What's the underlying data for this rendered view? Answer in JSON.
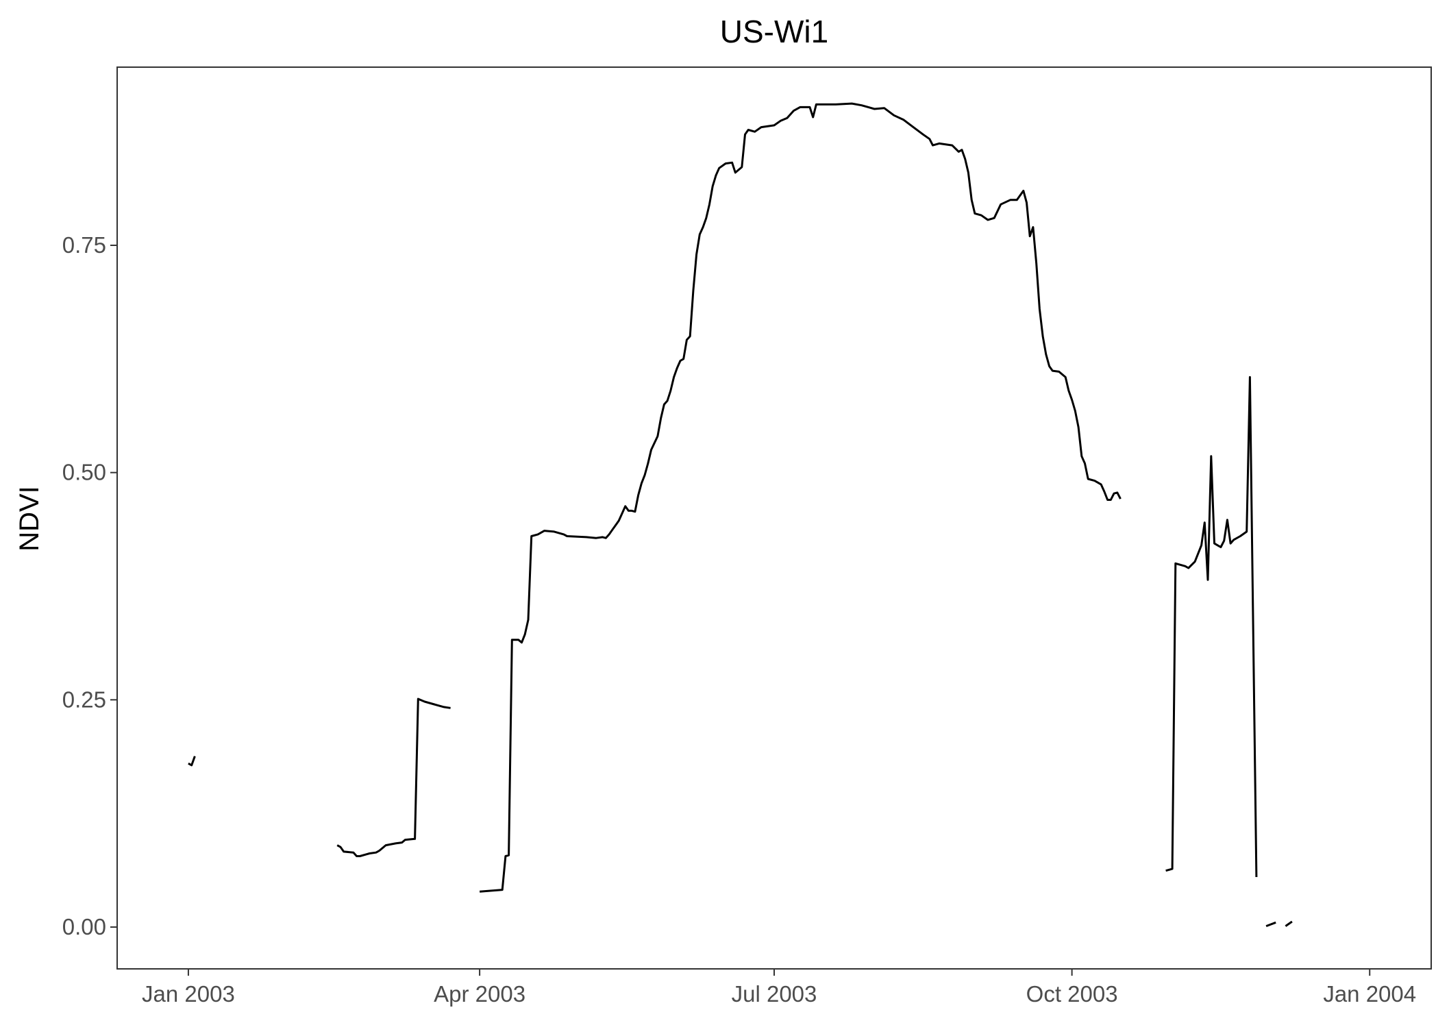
{
  "chart_data": {
    "type": "line",
    "title": "US-Wi1",
    "xlabel": "",
    "ylabel": "NDVI",
    "x_type": "date",
    "xlim": [
      "2002-12-10",
      "2004-01-20"
    ],
    "ylim": [
      -0.046,
      0.946
    ],
    "grid": false,
    "legend": "none",
    "line_color": "#000000",
    "x_ticks": [
      {
        "date": "2003-01-01",
        "label": "Jan 2003"
      },
      {
        "date": "2003-04-01",
        "label": "Apr 2003"
      },
      {
        "date": "2003-07-01",
        "label": "Jul 2003"
      },
      {
        "date": "2003-10-01",
        "label": "Oct 2003"
      },
      {
        "date": "2004-01-01",
        "label": "Jan 2004"
      }
    ],
    "y_ticks": [
      {
        "value": 0.0,
        "label": "0.00"
      },
      {
        "value": 0.25,
        "label": "0.25"
      },
      {
        "value": 0.5,
        "label": "0.50"
      },
      {
        "value": 0.75,
        "label": "0.75"
      }
    ],
    "segments": [
      [
        [
          "2003-01-01",
          0.18
        ],
        [
          "2003-01-02",
          0.178
        ],
        [
          "2003-01-03",
          0.188
        ]
      ],
      [
        [
          "2003-02-16",
          0.09
        ],
        [
          "2003-02-17",
          0.088
        ],
        [
          "2003-02-18",
          0.083
        ],
        [
          "2003-02-21",
          0.082
        ],
        [
          "2003-02-22",
          0.078
        ],
        [
          "2003-02-23",
          0.078
        ],
        [
          "2003-02-25",
          0.08
        ],
        [
          "2003-02-26",
          0.081
        ],
        [
          "2003-02-28",
          0.082
        ],
        [
          "2003-03-01",
          0.084
        ],
        [
          "2003-03-03",
          0.09
        ],
        [
          "2003-03-06",
          0.092
        ],
        [
          "2003-03-08",
          0.093
        ],
        [
          "2003-03-09",
          0.096
        ],
        [
          "2003-03-12",
          0.097
        ],
        [
          "2003-03-13",
          0.251
        ],
        [
          "2003-03-15",
          0.248
        ],
        [
          "2003-03-18",
          0.245
        ],
        [
          "2003-03-21",
          0.242
        ],
        [
          "2003-03-23",
          0.241
        ]
      ],
      [
        [
          "2003-04-01",
          0.039
        ],
        [
          "2003-04-08",
          0.041
        ],
        [
          "2003-04-09",
          0.078
        ],
        [
          "2003-04-10",
          0.079
        ],
        [
          "2003-04-11",
          0.316
        ],
        [
          "2003-04-13",
          0.316
        ],
        [
          "2003-04-14",
          0.313
        ],
        [
          "2003-04-15",
          0.322
        ],
        [
          "2003-04-16",
          0.338
        ],
        [
          "2003-04-17",
          0.43
        ],
        [
          "2003-04-19",
          0.432
        ],
        [
          "2003-04-21",
          0.436
        ],
        [
          "2003-04-24",
          0.435
        ],
        [
          "2003-04-27",
          0.432
        ],
        [
          "2003-04-28",
          0.43
        ],
        [
          "2003-05-04",
          0.429
        ],
        [
          "2003-05-07",
          0.428
        ],
        [
          "2003-05-09",
          0.429
        ],
        [
          "2003-05-10",
          0.428
        ],
        [
          "2003-05-11",
          0.432
        ],
        [
          "2003-05-12",
          0.437
        ],
        [
          "2003-05-13",
          0.442
        ],
        [
          "2003-05-14",
          0.447
        ],
        [
          "2003-05-15",
          0.455
        ],
        [
          "2003-05-16",
          0.463
        ],
        [
          "2003-05-17",
          0.458
        ],
        [
          "2003-05-18",
          0.458
        ],
        [
          "2003-05-19",
          0.457
        ],
        [
          "2003-05-20",
          0.475
        ],
        [
          "2003-05-21",
          0.488
        ],
        [
          "2003-05-22",
          0.497
        ],
        [
          "2003-05-23",
          0.51
        ],
        [
          "2003-05-24",
          0.525
        ],
        [
          "2003-05-26",
          0.54
        ],
        [
          "2003-05-27",
          0.56
        ],
        [
          "2003-05-28",
          0.575
        ],
        [
          "2003-05-29",
          0.579
        ],
        [
          "2003-05-30",
          0.59
        ],
        [
          "2003-05-31",
          0.605
        ],
        [
          "2003-06-01",
          0.615
        ],
        [
          "2003-06-02",
          0.623
        ],
        [
          "2003-06-03",
          0.625
        ],
        [
          "2003-06-04",
          0.646
        ],
        [
          "2003-06-05",
          0.65
        ],
        [
          "2003-06-06",
          0.7
        ],
        [
          "2003-06-07",
          0.74
        ],
        [
          "2003-06-08",
          0.762
        ],
        [
          "2003-06-09",
          0.77
        ],
        [
          "2003-06-10",
          0.78
        ],
        [
          "2003-06-11",
          0.795
        ],
        [
          "2003-06-12",
          0.815
        ],
        [
          "2003-06-13",
          0.827
        ],
        [
          "2003-06-14",
          0.835
        ],
        [
          "2003-06-16",
          0.84
        ],
        [
          "2003-06-18",
          0.841
        ],
        [
          "2003-06-19",
          0.83
        ],
        [
          "2003-06-21",
          0.836
        ],
        [
          "2003-06-22",
          0.872
        ],
        [
          "2003-06-23",
          0.877
        ],
        [
          "2003-06-25",
          0.875
        ],
        [
          "2003-06-27",
          0.88
        ],
        [
          "2003-07-01",
          0.882
        ],
        [
          "2003-07-03",
          0.887
        ],
        [
          "2003-07-05",
          0.89
        ],
        [
          "2003-07-07",
          0.898
        ],
        [
          "2003-07-09",
          0.902
        ],
        [
          "2003-07-12",
          0.902
        ],
        [
          "2003-07-13",
          0.891
        ],
        [
          "2003-07-14",
          0.905
        ],
        [
          "2003-07-20",
          0.905
        ],
        [
          "2003-07-25",
          0.906
        ],
        [
          "2003-07-28",
          0.904
        ],
        [
          "2003-08-01",
          0.9
        ],
        [
          "2003-08-04",
          0.901
        ],
        [
          "2003-08-07",
          0.893
        ],
        [
          "2003-08-10",
          0.888
        ],
        [
          "2003-08-13",
          0.88
        ],
        [
          "2003-08-16",
          0.872
        ],
        [
          "2003-08-18",
          0.867
        ],
        [
          "2003-08-19",
          0.86
        ],
        [
          "2003-08-21",
          0.862
        ],
        [
          "2003-08-25",
          0.86
        ],
        [
          "2003-08-27",
          0.853
        ],
        [
          "2003-08-28",
          0.855
        ],
        [
          "2003-08-29",
          0.845
        ],
        [
          "2003-08-30",
          0.83
        ],
        [
          "2003-08-31",
          0.8
        ],
        [
          "2003-09-01",
          0.785
        ],
        [
          "2003-09-03",
          0.783
        ],
        [
          "2003-09-05",
          0.778
        ],
        [
          "2003-09-07",
          0.78
        ],
        [
          "2003-09-09",
          0.795
        ],
        [
          "2003-09-12",
          0.8
        ],
        [
          "2003-09-14",
          0.8
        ],
        [
          "2003-09-16",
          0.81
        ],
        [
          "2003-09-17",
          0.797
        ],
        [
          "2003-09-18",
          0.76
        ],
        [
          "2003-09-19",
          0.77
        ],
        [
          "2003-09-20",
          0.73
        ],
        [
          "2003-09-21",
          0.68
        ],
        [
          "2003-09-22",
          0.65
        ],
        [
          "2003-09-23",
          0.63
        ],
        [
          "2003-09-24",
          0.617
        ],
        [
          "2003-09-25",
          0.612
        ],
        [
          "2003-09-27",
          0.611
        ],
        [
          "2003-09-29",
          0.605
        ],
        [
          "2003-09-30",
          0.59
        ],
        [
          "2003-10-01",
          0.58
        ],
        [
          "2003-10-02",
          0.568
        ],
        [
          "2003-10-03",
          0.55
        ],
        [
          "2003-10-04",
          0.518
        ],
        [
          "2003-10-05",
          0.51
        ],
        [
          "2003-10-06",
          0.493
        ],
        [
          "2003-10-08",
          0.491
        ],
        [
          "2003-10-10",
          0.487
        ],
        [
          "2003-10-11",
          0.479
        ],
        [
          "2003-10-12",
          0.47
        ],
        [
          "2003-10-13",
          0.47
        ],
        [
          "2003-10-14",
          0.477
        ],
        [
          "2003-10-15",
          0.478
        ],
        [
          "2003-10-16",
          0.471
        ]
      ],
      [
        [
          "2003-10-30",
          0.062
        ],
        [
          "2003-11-01",
          0.064
        ],
        [
          "2003-11-02",
          0.4
        ],
        [
          "2003-11-05",
          0.397
        ],
        [
          "2003-11-06",
          0.395
        ],
        [
          "2003-11-08",
          0.402
        ],
        [
          "2003-11-10",
          0.42
        ],
        [
          "2003-11-11",
          0.445
        ],
        [
          "2003-11-12",
          0.382
        ],
        [
          "2003-11-13",
          0.518
        ],
        [
          "2003-11-14",
          0.422
        ],
        [
          "2003-11-16",
          0.418
        ],
        [
          "2003-11-17",
          0.425
        ],
        [
          "2003-11-18",
          0.448
        ],
        [
          "2003-11-19",
          0.422
        ],
        [
          "2003-11-20",
          0.426
        ],
        [
          "2003-11-22",
          0.43
        ],
        [
          "2003-11-24",
          0.435
        ],
        [
          "2003-11-25",
          0.605
        ],
        [
          "2003-11-27",
          0.055
        ]
      ],
      [
        [
          "2003-11-30",
          0.001
        ],
        [
          "2003-12-03",
          0.005
        ]
      ],
      [
        [
          "2003-12-06",
          0.001
        ],
        [
          "2003-12-08",
          0.006
        ]
      ]
    ]
  }
}
